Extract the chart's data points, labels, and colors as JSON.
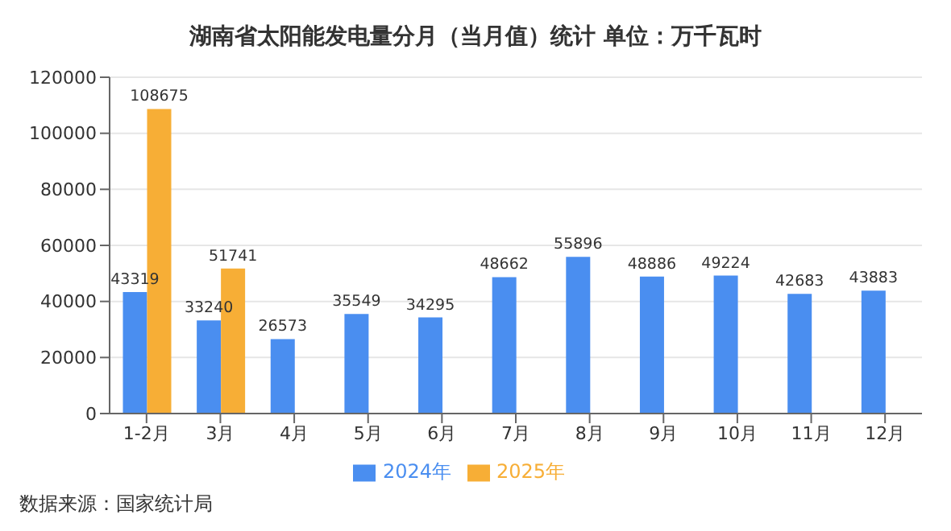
{
  "chart_data": {
    "type": "bar",
    "title": "湖南省太阳能发电量分月（当月值）统计  单位：万千瓦时",
    "categories": [
      "1-2月",
      "3月",
      "4月",
      "5月",
      "6月",
      "7月",
      "8月",
      "9月",
      "10月",
      "11月",
      "12月"
    ],
    "series": [
      {
        "name": "2024年",
        "color": "#4a8ef0",
        "values": [
          43319,
          33240,
          26573,
          35549,
          34295,
          48662,
          55896,
          48886,
          49224,
          42683,
          43883
        ]
      },
      {
        "name": "2025年",
        "color": "#f7ae36",
        "values": [
          108675,
          51741,
          null,
          null,
          null,
          null,
          null,
          null,
          null,
          null,
          null
        ]
      }
    ],
    "ylim": [
      0,
      120000
    ],
    "yticks": [
      0,
      20000,
      40000,
      60000,
      80000,
      100000,
      120000
    ],
    "grid": "y",
    "legend": "bottom",
    "data_labels": true,
    "annotations": [
      "数据来源：国家统计局"
    ]
  }
}
